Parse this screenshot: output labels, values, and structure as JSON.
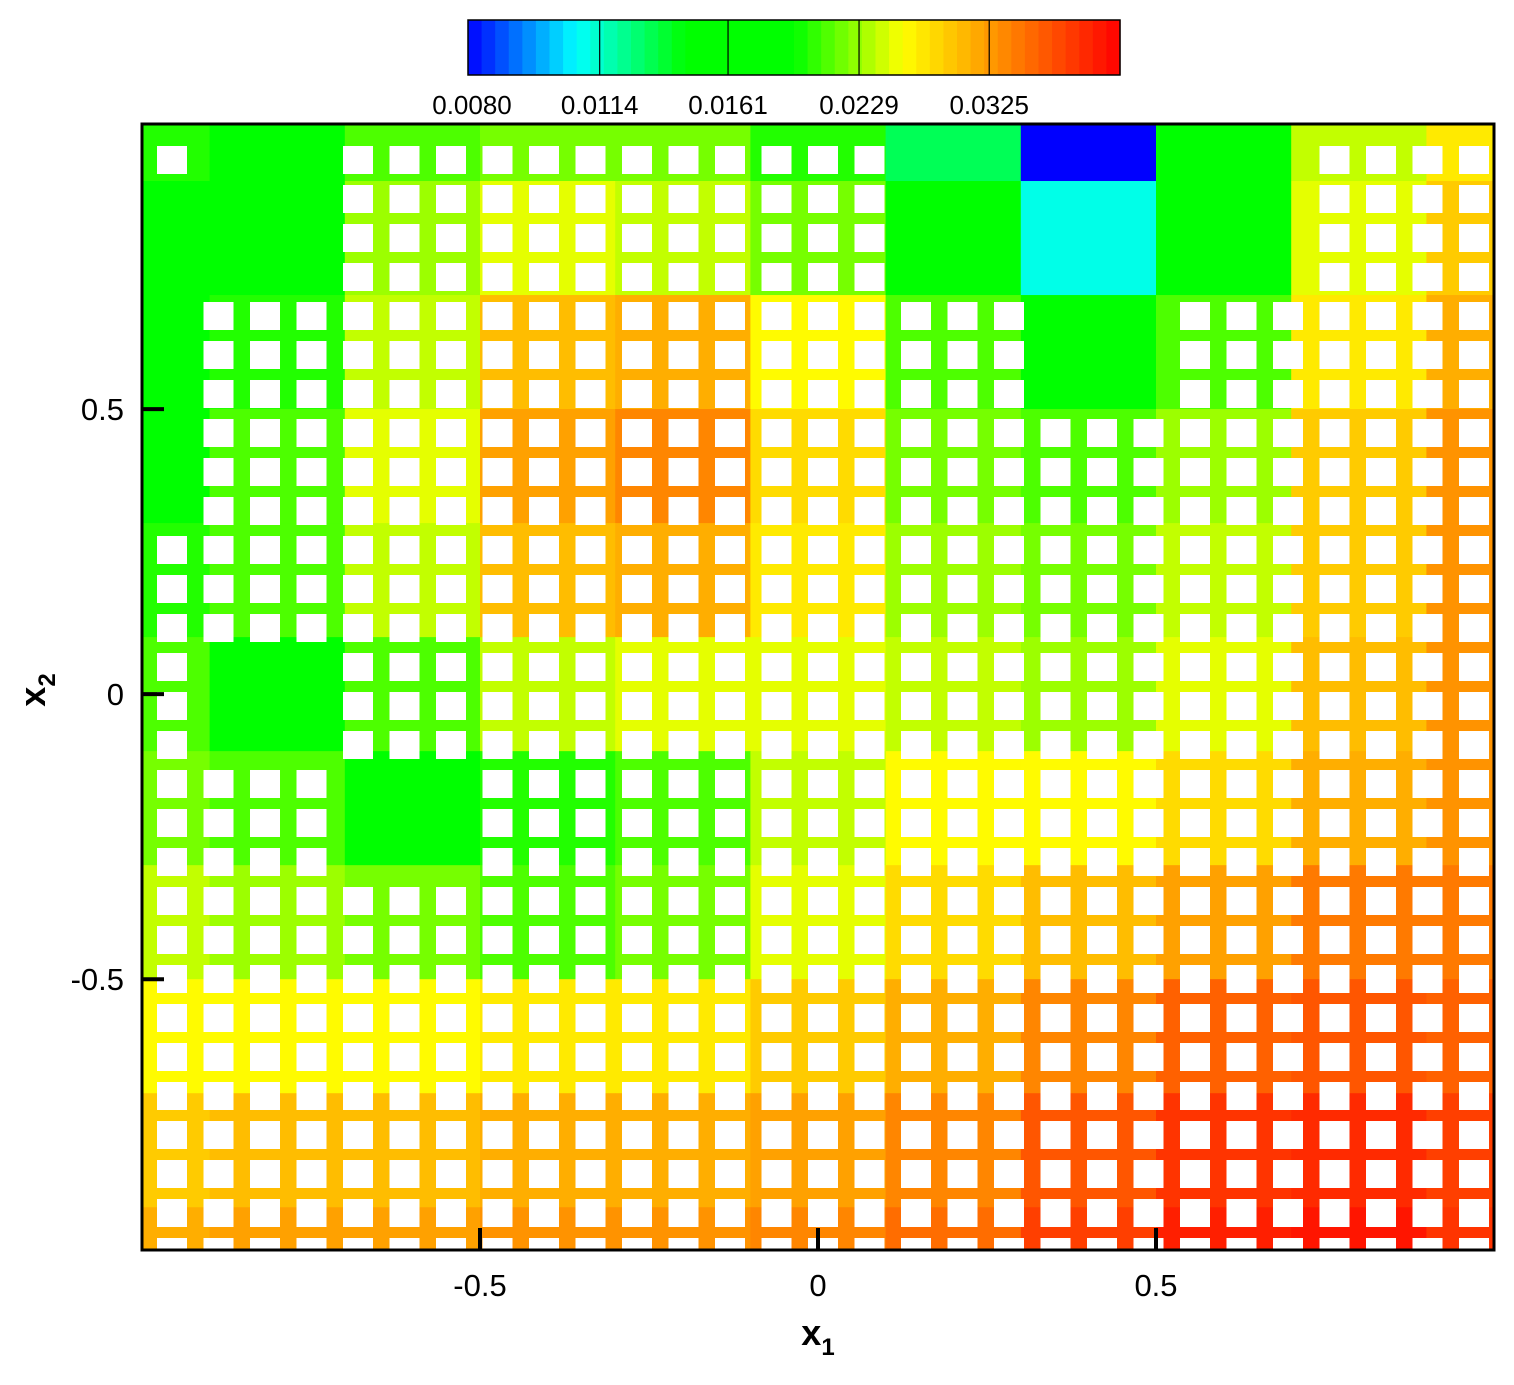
{
  "chart_data": {
    "type": "contour",
    "xlabel": "x",
    "xlabel_sub": "1",
    "ylabel": "x",
    "ylabel_sub": "2",
    "xlim": [
      -1,
      1
    ],
    "ylim": [
      -0.975,
      1
    ],
    "xticks": [
      -0.5,
      0,
      0.5
    ],
    "yticks": [
      0.5,
      0,
      -0.5
    ],
    "x": [
      -1,
      -0.8,
      -0.6,
      -0.4,
      -0.2,
      0,
      0.2,
      0.4,
      0.6,
      0.8,
      1
    ],
    "y": [
      1,
      0.8,
      0.6,
      0.4,
      0.2,
      0,
      -0.2,
      -0.4,
      -0.6,
      -0.8,
      -1
    ],
    "z": [
      [
        0.02,
        0.019,
        0.021,
        0.022,
        0.022,
        0.02,
        0.013,
        0.008,
        0.018,
        0.024,
        0.027
      ],
      [
        0.019,
        0.019,
        0.023,
        0.025,
        0.024,
        0.022,
        0.016,
        0.011,
        0.019,
        0.025,
        0.029
      ],
      [
        0.019,
        0.02,
        0.024,
        0.03,
        0.031,
        0.026,
        0.021,
        0.018,
        0.021,
        0.027,
        0.031
      ],
      [
        0.019,
        0.021,
        0.025,
        0.032,
        0.034,
        0.028,
        0.022,
        0.021,
        0.023,
        0.029,
        0.033
      ],
      [
        0.02,
        0.021,
        0.024,
        0.03,
        0.031,
        0.027,
        0.023,
        0.022,
        0.024,
        0.029,
        0.033
      ],
      [
        0.021,
        0.019,
        0.021,
        0.024,
        0.025,
        0.025,
        0.024,
        0.023,
        0.025,
        0.03,
        0.033
      ],
      [
        0.022,
        0.021,
        0.019,
        0.02,
        0.021,
        0.024,
        0.026,
        0.026,
        0.028,
        0.031,
        0.033
      ],
      [
        0.024,
        0.023,
        0.022,
        0.021,
        0.022,
        0.025,
        0.028,
        0.03,
        0.032,
        0.035,
        0.035
      ],
      [
        0.026,
        0.026,
        0.026,
        0.027,
        0.027,
        0.029,
        0.031,
        0.034,
        0.037,
        0.038,
        0.037
      ],
      [
        0.029,
        0.03,
        0.03,
        0.031,
        0.031,
        0.032,
        0.034,
        0.038,
        0.041,
        0.042,
        0.04
      ],
      [
        0.031,
        0.032,
        0.032,
        0.033,
        0.033,
        0.034,
        0.036,
        0.04,
        0.043,
        0.044,
        0.041
      ]
    ],
    "clim": [
      0.008,
      0.0462
    ],
    "clog": true,
    "cticks": [
      {
        "value": 0.008,
        "label": "0.0080"
      },
      {
        "value": 0.0114,
        "label": "0.0114"
      },
      {
        "value": 0.0161,
        "label": "0.0161"
      },
      {
        "value": 0.0229,
        "label": "0.0229"
      },
      {
        "value": 0.0325,
        "label": "0.0325"
      }
    ],
    "colormap": [
      "#0000ff",
      "#00ffff",
      "#00ff00",
      "#00ff00",
      "#ffff00",
      "#ff8000",
      "#ff0000"
    ]
  }
}
